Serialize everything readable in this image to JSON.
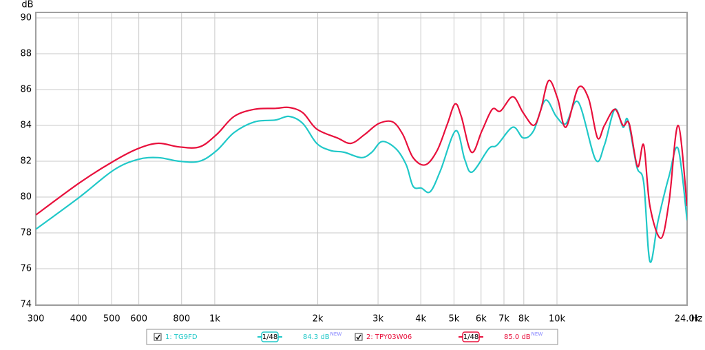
{
  "chart_data": {
    "type": "line",
    "x_label": "Hz",
    "y_label": "dB",
    "xscale": "log",
    "grid": true,
    "xlim": [
      300,
      24000
    ],
    "ylim": [
      74,
      90
    ],
    "xticks": [
      300,
      400,
      500,
      600,
      800,
      {
        "value": 1000,
        "label": "1k"
      },
      {
        "value": 2000,
        "label": "2k"
      },
      {
        "value": 3000,
        "label": "3k"
      },
      {
        "value": 4000,
        "label": "4k"
      },
      {
        "value": 5000,
        "label": "5k"
      },
      {
        "value": 6000,
        "label": "6k"
      },
      {
        "value": 7000,
        "label": "7k"
      },
      {
        "value": 8000,
        "label": "8k"
      },
      {
        "value": 10000,
        "label": "10k"
      },
      {
        "value": 24000,
        "label": "24.0k"
      }
    ],
    "yticks": [
      74,
      76,
      78,
      80,
      82,
      84,
      86,
      88,
      90
    ],
    "series": [
      {
        "name": "1: TG9FD",
        "color": "#20c8c8",
        "smoothing": "1/48",
        "level": "84.3 dB",
        "level_tag": "NEW",
        "x": [
          300,
          403,
          506,
          596,
          684,
          786,
          903,
          1014,
          1139,
          1309,
          1504,
          1650,
          1810,
          1985,
          2178,
          2389,
          2683,
          2876,
          3083,
          3382,
          3626,
          3798,
          4015,
          4264,
          4570,
          5062,
          5375,
          5656,
          6321,
          6681,
          7432,
          7968,
          8544,
          9243,
          9953,
          10617,
          11540,
          12957,
          13760,
          14753,
          15595,
          16110,
          17109,
          17922,
          18685,
          19755,
          21274,
          22594,
          24000
        ],
        "values": [
          78.2,
          80.0,
          81.5,
          82.1,
          82.2,
          82.0,
          82.0,
          82.6,
          83.6,
          84.2,
          84.3,
          84.5,
          84.1,
          83.0,
          82.6,
          82.5,
          82.2,
          82.5,
          83.1,
          82.7,
          81.8,
          80.6,
          80.5,
          80.3,
          81.5,
          83.7,
          82.1,
          81.4,
          82.7,
          82.9,
          83.9,
          83.3,
          83.7,
          85.4,
          84.5,
          84.1,
          85.3,
          82.1,
          82.9,
          84.9,
          83.9,
          84.3,
          81.7,
          80.8,
          76.4,
          78.7,
          81.2,
          82.7,
          78.7
        ]
      },
      {
        "name": "2: TPY03W06",
        "color": "#e8103c",
        "smoothing": "1/48",
        "level": "85.0 dB",
        "level_tag": "NEW",
        "x": [
          300,
          403,
          506,
          596,
          684,
          786,
          903,
          1014,
          1139,
          1309,
          1504,
          1650,
          1810,
          1985,
          2281,
          2503,
          2745,
          3012,
          3305,
          3543,
          3798,
          4127,
          4466,
          4787,
          5039,
          5252,
          5629,
          6036,
          6470,
          6837,
          7432,
          7968,
          8544,
          8948,
          9457,
          10044,
          10617,
          11540,
          12368,
          13138,
          13760,
          14753,
          15595,
          16259,
          17190,
          17922,
          18685,
          20123,
          21274,
          22594,
          24000
        ],
        "values": [
          79.0,
          80.8,
          82.0,
          82.7,
          83.0,
          82.8,
          82.8,
          83.5,
          84.5,
          84.9,
          84.95,
          85.0,
          84.7,
          83.8,
          83.3,
          83.0,
          83.5,
          84.1,
          84.2,
          83.5,
          82.2,
          81.8,
          82.6,
          84.1,
          85.2,
          84.5,
          82.5,
          83.7,
          84.9,
          84.8,
          85.6,
          84.7,
          84.0,
          84.8,
          86.5,
          85.5,
          83.9,
          86.1,
          85.5,
          83.3,
          84.0,
          84.9,
          84.0,
          84.1,
          81.7,
          82.9,
          79.5,
          77.7,
          79.8,
          84.0,
          79.5
        ]
      }
    ]
  }
}
